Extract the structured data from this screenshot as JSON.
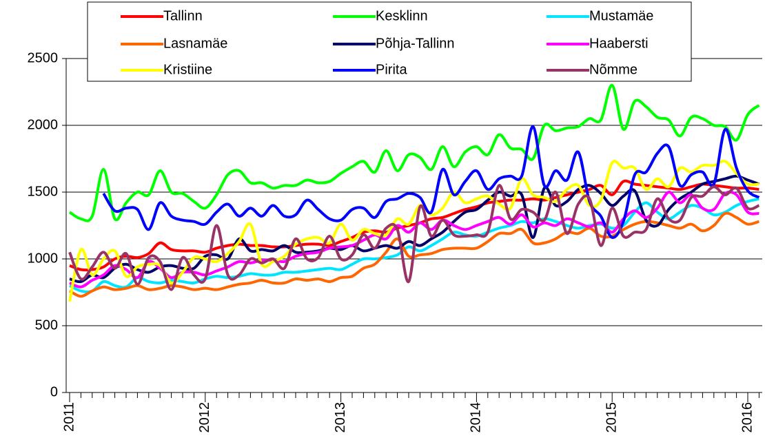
{
  "chart_data": {
    "type": "line",
    "categories": [
      "2011",
      null,
      null,
      null,
      null,
      null,
      null,
      null,
      null,
      null,
      null,
      null,
      "2012",
      null,
      null,
      null,
      null,
      null,
      null,
      null,
      null,
      null,
      null,
      null,
      "2013",
      null,
      null,
      null,
      null,
      null,
      null,
      null,
      null,
      null,
      null,
      null,
      "2014",
      null,
      null,
      null,
      null,
      null,
      null,
      null,
      null,
      null,
      null,
      null,
      "2015",
      null,
      null,
      null,
      null,
      null,
      null,
      null,
      null,
      null,
      null,
      null,
      "2016",
      null
    ],
    "ylim": [
      0,
      2500
    ],
    "yticks": [
      0,
      500,
      1000,
      1500,
      2000,
      2500
    ],
    "grid": true,
    "legend": "top",
    "series": [
      {
        "name": "Tallinn",
        "color": "#ff0000",
        "values": [
          950,
          920,
          920,
          940,
          1000,
          1020,
          1010,
          1040,
          1120,
          1070,
          1060,
          1060,
          1050,
          1080,
          1100,
          1110,
          1100,
          1100,
          1090,
          1090,
          1100,
          1110,
          1110,
          1100,
          1130,
          1160,
          1200,
          1210,
          1200,
          1230,
          1250,
          1270,
          1300,
          1310,
          1340,
          1370,
          1390,
          1420,
          1430,
          1440,
          1440,
          1450,
          1440,
          1460,
          1480,
          1500,
          1520,
          1550,
          1480,
          1580,
          1560,
          1550,
          1540,
          1530,
          1520,
          1540,
          1560,
          1550,
          1540,
          1530,
          1530,
          1520
        ]
      },
      {
        "name": "Kesklinn",
        "color": "#00ff00",
        "values": [
          1350,
          1300,
          1320,
          1670,
          1300,
          1420,
          1500,
          1480,
          1660,
          1500,
          1490,
          1430,
          1380,
          1480,
          1630,
          1660,
          1570,
          1570,
          1530,
          1550,
          1550,
          1590,
          1570,
          1580,
          1640,
          1690,
          1730,
          1650,
          1810,
          1660,
          1780,
          1760,
          1670,
          1840,
          1690,
          1800,
          1840,
          1780,
          1930,
          1830,
          1820,
          1750,
          2000,
          1960,
          1980,
          1990,
          2050,
          2040,
          2300,
          1970,
          2180,
          2140,
          2060,
          2040,
          1920,
          2060,
          2050,
          2000,
          1990,
          1890,
          2080,
          2150
        ]
      },
      {
        "name": "Mustamäe",
        "color": "#00e5ff",
        "values": [
          800,
          760,
          760,
          830,
          800,
          790,
          860,
          830,
          820,
          840,
          830,
          820,
          850,
          870,
          860,
          870,
          890,
          880,
          880,
          900,
          900,
          910,
          920,
          930,
          920,
          960,
          1000,
          1000,
          1010,
          1030,
          1090,
          1060,
          1100,
          1150,
          1200,
          1180,
          1170,
          1200,
          1230,
          1250,
          1280,
          1270,
          1300,
          1280,
          1250,
          1230,
          1250,
          1260,
          1230,
          1250,
          1350,
          1420,
          1350,
          1300,
          1350,
          1400,
          1380,
          1330,
          1350,
          1400,
          1430,
          1450
        ]
      },
      {
        "name": "Lasnamäe",
        "color": "#ff6600",
        "values": [
          760,
          720,
          760,
          790,
          770,
          780,
          800,
          770,
          780,
          800,
          790,
          770,
          780,
          770,
          790,
          810,
          820,
          840,
          820,
          820,
          850,
          840,
          850,
          830,
          860,
          870,
          930,
          960,
          1050,
          1150,
          1020,
          1030,
          1040,
          1070,
          1080,
          1080,
          1080,
          1130,
          1190,
          1190,
          1220,
          1120,
          1120,
          1150,
          1200,
          1190,
          1230,
          1170,
          1170,
          1220,
          1260,
          1280,
          1270,
          1250,
          1230,
          1260,
          1210,
          1250,
          1340,
          1310,
          1260,
          1280
        ]
      },
      {
        "name": "Põhja-Tallinn",
        "color": "#000066",
        "values": [
          850,
          830,
          880,
          860,
          930,
          960,
          920,
          900,
          940,
          950,
          930,
          930,
          1020,
          1030,
          1000,
          1150,
          1060,
          1070,
          1060,
          1100,
          1050,
          1050,
          1060,
          1080,
          1070,
          1100,
          1060,
          1080,
          1100,
          1080,
          1130,
          1100,
          1150,
          1200,
          1280,
          1350,
          1370,
          1440,
          1500,
          1470,
          1480,
          1160,
          1530,
          1400,
          1430,
          1520,
          1550,
          1490,
          1400,
          1470,
          1510,
          1290,
          1250,
          1370,
          1450,
          1500,
          1560,
          1580,
          1600,
          1620,
          1590,
          1560
        ]
      },
      {
        "name": "Haabersti",
        "color": "#ff00ff",
        "values": [
          820,
          790,
          840,
          880,
          950,
          920,
          860,
          980,
          930,
          860,
          900,
          900,
          880,
          910,
          940,
          980,
          970,
          990,
          990,
          980,
          1020,
          1040,
          1050,
          1080,
          1090,
          1100,
          1140,
          1180,
          1150,
          1250,
          1200,
          1270,
          1220,
          1290,
          1250,
          1220,
          1250,
          1280,
          1310,
          1260,
          1330,
          1240,
          1270,
          1250,
          1300,
          1270,
          1240,
          1270,
          1200,
          1300,
          1360,
          1310,
          1380,
          1500,
          1420,
          1480,
          1380,
          1370,
          1490,
          1480,
          1350,
          1340
        ]
      },
      {
        "name": "Kristiine",
        "color": "#ffff00",
        "values": [
          680,
          1070,
          880,
          1000,
          1060,
          870,
          940,
          960,
          950,
          820,
          900,
          1010,
          1000,
          980,
          1040,
          1130,
          1260,
          960,
          980,
          1020,
          1110,
          1150,
          1160,
          1120,
          1260,
          1140,
          1220,
          1190,
          1180,
          1300,
          1260,
          1400,
          1330,
          1380,
          1500,
          1420,
          1450,
          1470,
          1410,
          1380,
          1600,
          1480,
          1460,
          1430,
          1520,
          1550,
          1400,
          1440,
          1720,
          1680,
          1680,
          1520,
          1600,
          1540,
          1680,
          1650,
          1700,
          1700,
          1730,
          1640,
          1560,
          1560
        ]
      },
      {
        "name": "Pirita",
        "color": "#0000ff",
        "values": [
          null,
          null,
          null,
          1490,
          1360,
          1380,
          1370,
          1220,
          1420,
          1320,
          1290,
          1280,
          1260,
          1350,
          1410,
          1320,
          1380,
          1320,
          1400,
          1320,
          1330,
          1440,
          1370,
          1300,
          1290,
          1370,
          1380,
          1310,
          1430,
          1450,
          1490,
          1460,
          1350,
          1670,
          1480,
          1580,
          1660,
          1520,
          1600,
          1620,
          1620,
          1990,
          1550,
          1660,
          1590,
          1800,
          1430,
          1320,
          1160,
          1280,
          1630,
          1650,
          1790,
          1840,
          1550,
          1630,
          1650,
          1560,
          1970,
          1680,
          1510,
          1460
        ]
      },
      {
        "name": "Nõmme",
        "color": "#993366",
        "values": [
          1050,
          850,
          940,
          1050,
          930,
          1040,
          810,
          1010,
          980,
          770,
          1010,
          880,
          850,
          1250,
          880,
          880,
          1000,
          970,
          1000,
          930,
          1150,
          1000,
          1010,
          1170,
          1000,
          1030,
          1180,
          1080,
          1230,
          1220,
          830,
          1390,
          1170,
          1290,
          1180,
          1170,
          1180,
          1200,
          1550,
          1300,
          1370,
          1350,
          1290,
          1500,
          1190,
          1410,
          1450,
          1100,
          1380,
          1170,
          1200,
          1220,
          1450,
          1300,
          1290,
          1460,
          1470,
          1540,
          1480,
          1530,
          1380,
          1400
        ]
      }
    ]
  }
}
